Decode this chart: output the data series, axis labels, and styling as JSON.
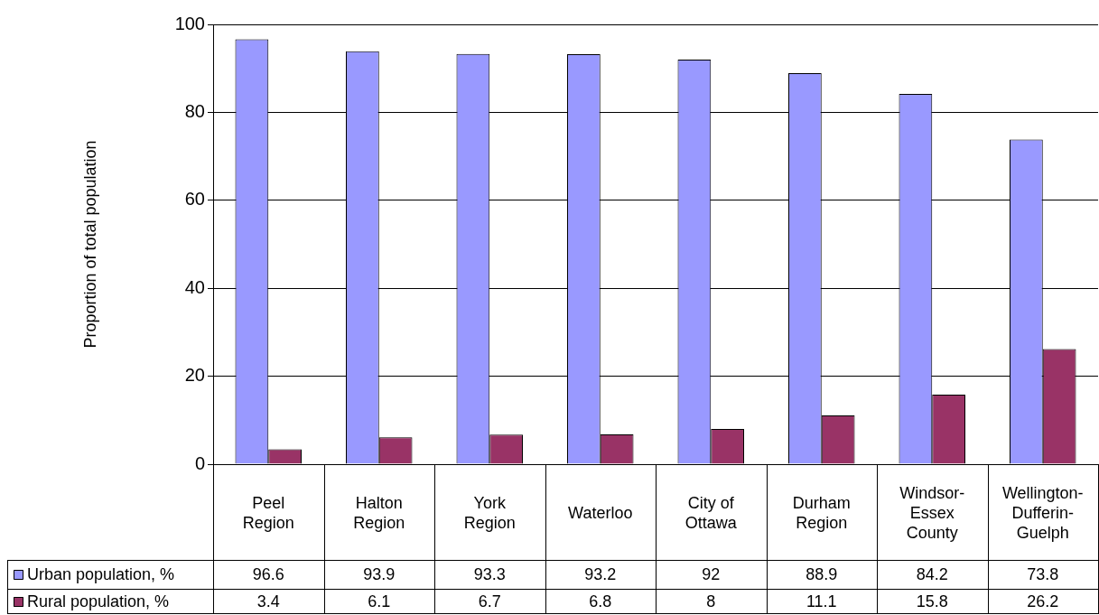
{
  "chart_data": {
    "type": "bar",
    "ylabel": "Proportion of total population",
    "categories": [
      "Peel Region",
      "Halton Region",
      "York Region",
      "Waterloo",
      "City of Ottawa",
      "Durham Region",
      "Windsor-Essex County",
      "Wellington-Dufferin-Guelph"
    ],
    "series": [
      {
        "name": "Urban population, %",
        "color": "#9999ff",
        "values": [
          96.6,
          93.9,
          93.3,
          93.2,
          92,
          88.9,
          84.2,
          73.8
        ]
      },
      {
        "name": "Rural population, %",
        "color": "#993366",
        "values": [
          3.4,
          6.1,
          6.7,
          6.8,
          8,
          11.1,
          15.8,
          26.2
        ]
      }
    ],
    "ylim": [
      0,
      100
    ],
    "yticks": [
      0,
      20,
      40,
      60,
      80,
      100
    ],
    "grid": "y",
    "legend": "bottom left",
    "data_labels": true
  }
}
